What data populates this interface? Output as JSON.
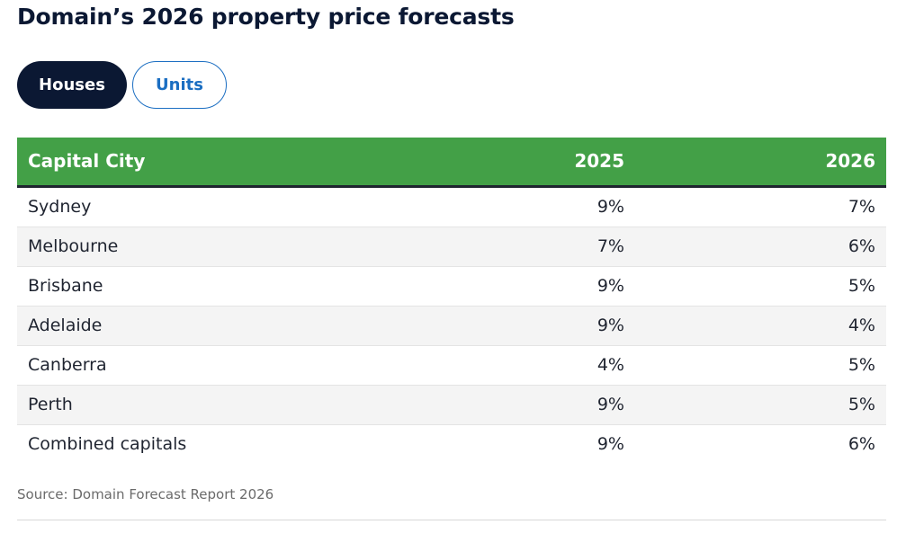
{
  "page": {
    "title": "Domain’s 2026 property price forecasts",
    "source": "Source: Domain Forecast Report 2026"
  },
  "tabs": [
    {
      "label": "Houses",
      "active": true
    },
    {
      "label": "Units",
      "active": false
    }
  ],
  "colors": {
    "header_bg": "#43a047",
    "active_tab_bg": "#0b1833",
    "inactive_tab_accent": "#1b6ec2",
    "row_shade": "#f4f4f4"
  },
  "chart_data": {
    "type": "table",
    "title": "Domain’s 2026 property price forecasts",
    "columns": [
      "Capital City",
      "2025",
      "2026"
    ],
    "rows": [
      {
        "city": "Sydney",
        "y2025": "9%",
        "y2026": "7%"
      },
      {
        "city": "Melbourne",
        "y2025": "7%",
        "y2026": "6%"
      },
      {
        "city": "Brisbane",
        "y2025": "9%",
        "y2026": "5%"
      },
      {
        "city": "Adelaide",
        "y2025": "9%",
        "y2026": "4%"
      },
      {
        "city": "Canberra",
        "y2025": "4%",
        "y2026": "5%"
      },
      {
        "city": "Perth",
        "y2025": "9%",
        "y2026": "5%"
      },
      {
        "city": "Combined capitals",
        "y2025": "9%",
        "y2026": "6%"
      }
    ],
    "source": "Source: Domain Forecast Report 2026"
  }
}
